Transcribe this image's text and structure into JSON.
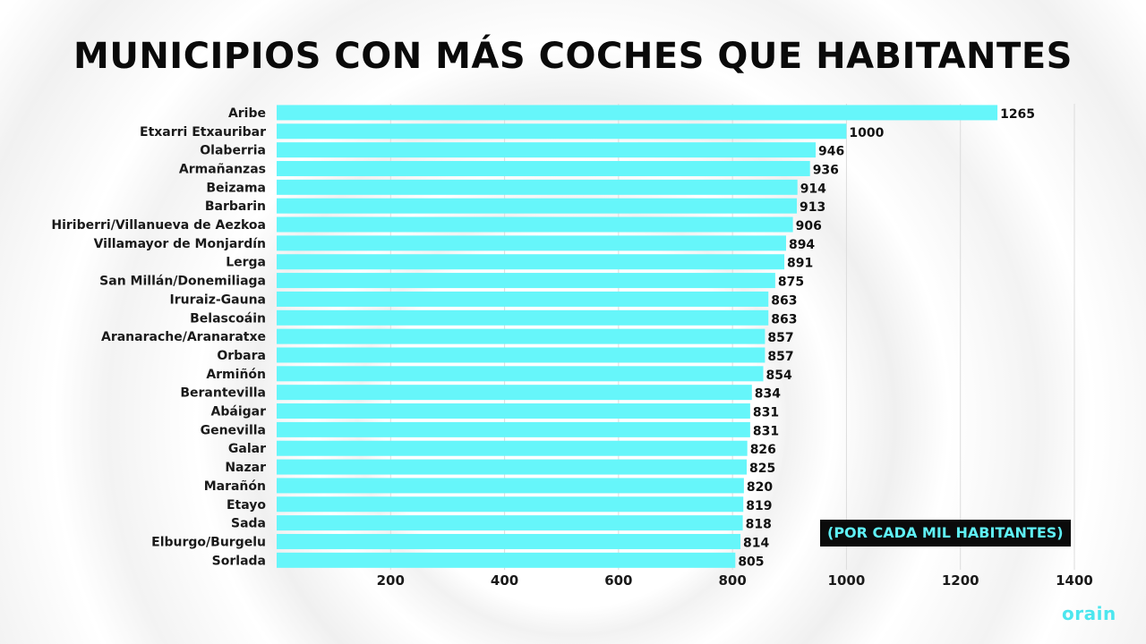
{
  "chart_data": {
    "type": "bar",
    "orientation": "horizontal",
    "title": "MUNICIPIOS CON MÁS COCHES QUE HABITANTES",
    "note": "(POR CADA MIL HABITANTES)",
    "categories": [
      "Aribe",
      "Etxarri Etxauribar",
      "Olaberria",
      "Armañanzas",
      "Beizama",
      "Barbarin",
      "Hiriberri/Villanueva de Aezkoa",
      "Villamayor de Monjardín",
      "Lerga",
      "San Millán/Donemiliaga",
      "Iruraiz-Gauna",
      "Belascoáin",
      "Aranarache/Aranaratxe",
      "Orbara",
      "Armiñón",
      "Berantevilla",
      "Abáigar",
      "Genevilla",
      "Galar",
      "Nazar",
      "Marañón",
      "Etayo",
      "Sada",
      "Elburgo/Burgelu",
      "Sorlada"
    ],
    "values": [
      1265,
      1000,
      946,
      936,
      914,
      913,
      906,
      894,
      891,
      875,
      863,
      863,
      857,
      857,
      854,
      834,
      831,
      831,
      826,
      825,
      820,
      819,
      818,
      814,
      805
    ],
    "xlim": [
      0,
      1400
    ],
    "xticks": [
      200,
      400,
      600,
      800,
      1000,
      1200,
      1400
    ],
    "grid": true,
    "colors": {
      "bar": "#66f6fa",
      "grid": "#dcdcdc",
      "note_bg": "#0b0b0b",
      "note_text": "#5ff0f5",
      "logo": "#4ce6ee"
    }
  },
  "brand": {
    "logo_text": "orain"
  }
}
